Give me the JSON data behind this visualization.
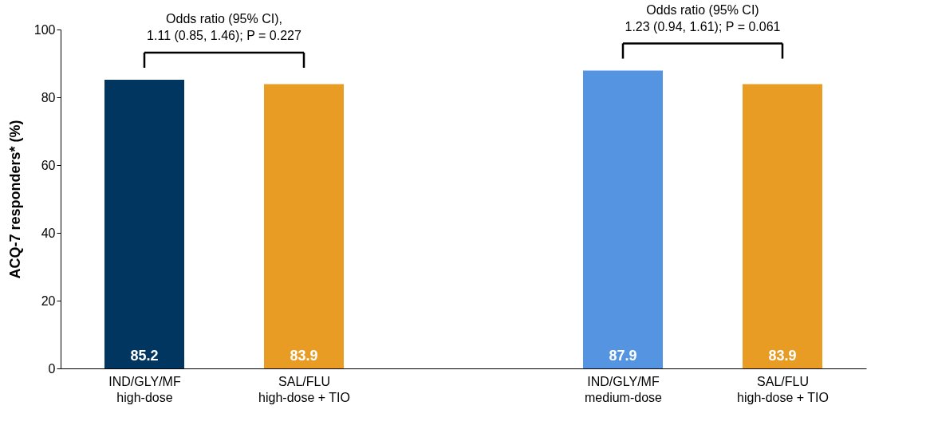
{
  "chart_data": {
    "type": "bar",
    "ylabel": "ACQ-7 responders* (%)",
    "categories": [
      "IND/GLY/MF\nhigh-dose",
      "SAL/FLU\nhigh-dose + TIO",
      null,
      "IND/GLY/MF\nmedium-dose",
      "SAL/FLU\nhigh-dose + TIO"
    ],
    "values": [
      85.2,
      83.9,
      null,
      87.9,
      83.9
    ],
    "colors": [
      "#003660",
      "#e89c23",
      "#ffffff",
      "#5594e0",
      "#e89c23"
    ],
    "ylim": [
      0,
      100
    ],
    "yticks": [
      0,
      20,
      40,
      60,
      80,
      100
    ],
    "grid": false,
    "data_labels": true,
    "annotations": [
      "Odds ratio (95% CI),\n1.11 (0.85, 1.46); P = 0.227",
      "Odds ratio (95% CI)\n1.23 (0.94, 1.61); P = 0.061"
    ]
  }
}
